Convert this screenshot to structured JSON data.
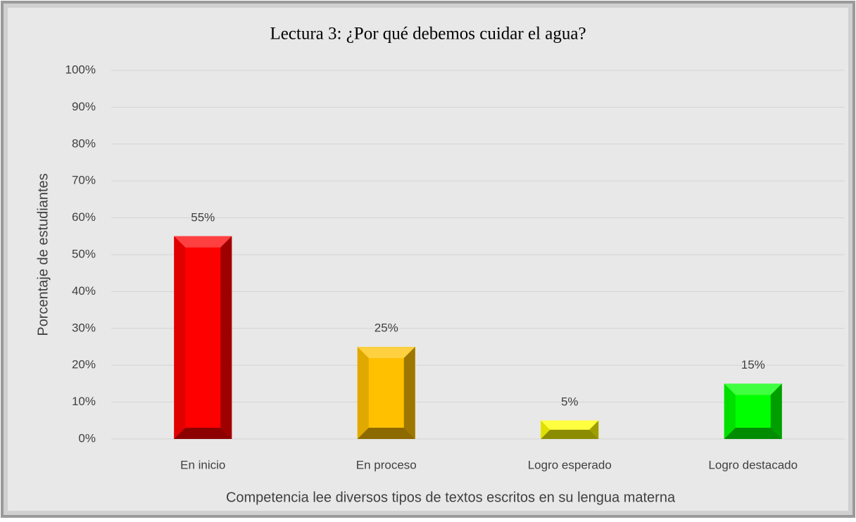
{
  "chart_data": {
    "type": "bar",
    "title": "Lectura 3: ¿Por qué debemos cuidar el agua?",
    "categories": [
      "En inicio",
      "En proceso",
      "Logro esperado",
      "Logro destacado"
    ],
    "values": [
      55,
      25,
      5,
      15
    ],
    "value_labels": [
      "55%",
      "25%",
      "5%",
      "15%"
    ],
    "colors": [
      "#ff0000",
      "#ffc000",
      "#ffff00",
      "#00ff00"
    ],
    "x_label": "Competencia lee diversos tipos de textos escritos en su lengua materna",
    "y_label": "Porcentaje de estudiantes",
    "ylim": [
      0,
      100
    ],
    "yticks": [
      {
        "value": 0,
        "label": "0%"
      },
      {
        "value": 10,
        "label": "10%"
      },
      {
        "value": 20,
        "label": "20%"
      },
      {
        "value": 30,
        "label": "30%"
      },
      {
        "value": 40,
        "label": "40%"
      },
      {
        "value": 50,
        "label": "50%"
      },
      {
        "value": 60,
        "label": "60%"
      },
      {
        "value": 70,
        "label": "70%"
      },
      {
        "value": 80,
        "label": "80%"
      },
      {
        "value": 90,
        "label": "90%"
      },
      {
        "value": 100,
        "label": "100%"
      }
    ],
    "grid": true
  }
}
